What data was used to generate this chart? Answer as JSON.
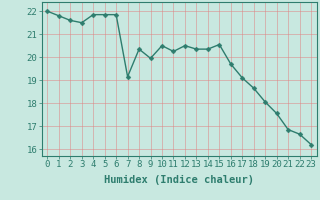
{
  "x": [
    0,
    1,
    2,
    3,
    4,
    5,
    6,
    7,
    8,
    9,
    10,
    11,
    12,
    13,
    14,
    15,
    16,
    17,
    18,
    19,
    20,
    21,
    22,
    23
  ],
  "y": [
    22.0,
    21.8,
    21.6,
    21.5,
    21.85,
    21.85,
    21.85,
    19.15,
    20.35,
    19.95,
    20.5,
    20.25,
    20.5,
    20.35,
    20.35,
    20.55,
    19.7,
    19.1,
    18.65,
    18.05,
    17.55,
    16.85,
    16.65,
    16.2
  ],
  "line_color": "#2e7d6e",
  "marker": "D",
  "marker_size": 2.5,
  "bg_color": "#c8e8e0",
  "grid_color": "#e08080",
  "xlabel": "Humidex (Indice chaleur)",
  "xlim": [
    -0.5,
    23.5
  ],
  "ylim": [
    15.7,
    22.4
  ],
  "yticks": [
    16,
    17,
    18,
    19,
    20,
    21,
    22
  ],
  "xticks": [
    0,
    1,
    2,
    3,
    4,
    5,
    6,
    7,
    8,
    9,
    10,
    11,
    12,
    13,
    14,
    15,
    16,
    17,
    18,
    19,
    20,
    21,
    22,
    23
  ],
  "tick_fontsize": 6.5,
  "xlabel_fontsize": 7.5,
  "linewidth": 1.0
}
